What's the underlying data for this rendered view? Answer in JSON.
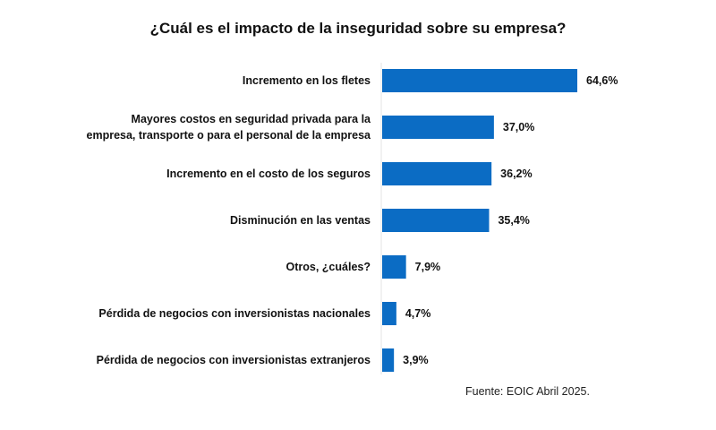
{
  "chart_data": {
    "type": "bar",
    "orientation": "horizontal",
    "title": "¿Cuál es el impacto de la inseguridad sobre su empresa?",
    "source": "Fuente: EOIC Abril 2025.",
    "categories": [
      [
        "Incremento en los fletes"
      ],
      [
        "Mayores costos en seguridad privada para la",
        "empresa, transporte o para el personal de la empresa"
      ],
      [
        "Incremento en el costo de los seguros"
      ],
      [
        "Disminución en las ventas"
      ],
      [
        "Otros, ¿cuáles?"
      ],
      [
        "Pérdida de negocios con inversionistas nacionales"
      ],
      [
        "Pérdida de negocios con inversionistas extranjeros"
      ]
    ],
    "values": [
      64.6,
      37.0,
      36.2,
      35.4,
      7.9,
      4.7,
      3.9
    ],
    "value_labels": [
      "64,6%",
      "37,0%",
      "36,2%",
      "35,4%",
      "7,9%",
      "4,7%",
      "3,9%"
    ],
    "xlim": [
      0,
      80
    ],
    "grid": false,
    "bar_color": "#0b6cc4"
  }
}
